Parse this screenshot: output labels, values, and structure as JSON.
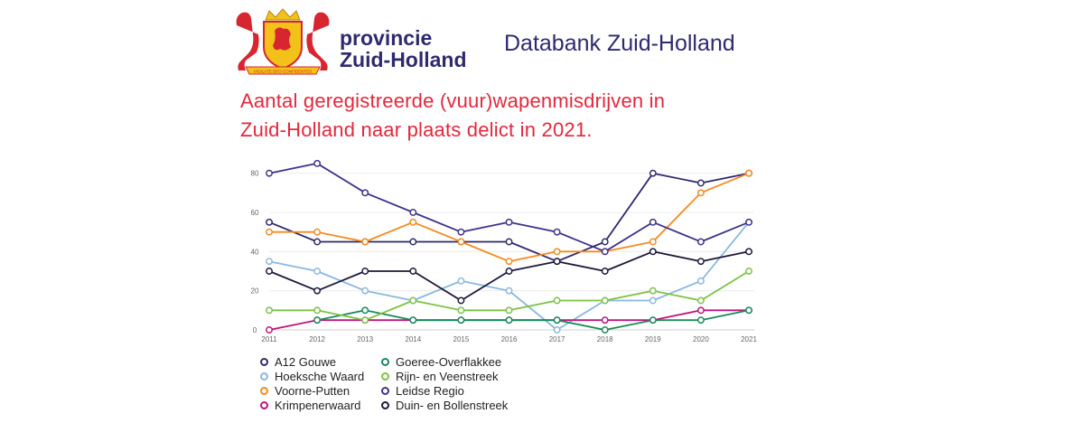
{
  "header": {
    "brand_line1": "provincie",
    "brand_line2": "Zuid-Holland",
    "databank": "Databank Zuid-Holland",
    "logo_text": "VIGILATE DEO CONFIDENTES",
    "logo_colors": {
      "red": "#d7262f",
      "gold": "#f2c21b"
    }
  },
  "chart_title": {
    "line1": "Aantal geregistreerde (vuur)wapenmisdrijven in",
    "line2": "Zuid-Holland naar plaats delict in 2021."
  },
  "chart_data": {
    "type": "line",
    "title": "Aantal geregistreerde (vuur)wapenmisdrijven in Zuid-Holland naar plaats delict in 2021.",
    "x": [
      "2011",
      "2012",
      "2013",
      "2014",
      "2015",
      "2016",
      "2017",
      "2018",
      "2019",
      "2020",
      "2021"
    ],
    "ylim": [
      0,
      90
    ],
    "yticks": [
      0,
      20,
      40,
      60,
      80
    ],
    "grid": true,
    "legend_position": "bottom",
    "series": [
      {
        "name": "A12 Gouwe",
        "color": "#2e2a6e",
        "values": [
          55,
          45,
          45,
          45,
          45,
          45,
          35,
          45,
          80,
          75,
          80
        ]
      },
      {
        "name": "Hoeksche Waard",
        "color": "#8ab8e0",
        "values": [
          35,
          30,
          20,
          15,
          25,
          20,
          0,
          15,
          15,
          25,
          55
        ]
      },
      {
        "name": "Voorne-Putten",
        "color": "#f58a1f",
        "values": [
          50,
          50,
          45,
          55,
          45,
          35,
          40,
          40,
          45,
          70,
          80
        ]
      },
      {
        "name": "Krimpenerwaard",
        "color": "#c0147f",
        "values": [
          0,
          5,
          5,
          5,
          5,
          5,
          5,
          5,
          5,
          10,
          10
        ]
      },
      {
        "name": "Goeree-Overflakkee",
        "color": "#1a8a5a",
        "values": [
          null,
          5,
          10,
          5,
          5,
          5,
          5,
          0,
          5,
          5,
          10
        ]
      },
      {
        "name": "Rijn- en Veenstreek",
        "color": "#7cc242",
        "values": [
          10,
          10,
          5,
          15,
          10,
          10,
          15,
          15,
          20,
          15,
          30
        ]
      },
      {
        "name": "Leidse Regio",
        "color": "#3d348b",
        "values": [
          80,
          85,
          70,
          60,
          50,
          55,
          50,
          40,
          55,
          45,
          55
        ]
      },
      {
        "name": "Duin- en Bollenstreek",
        "color": "#1c1a3a",
        "values": [
          30,
          20,
          30,
          30,
          15,
          30,
          35,
          30,
          40,
          35,
          40
        ]
      }
    ]
  }
}
